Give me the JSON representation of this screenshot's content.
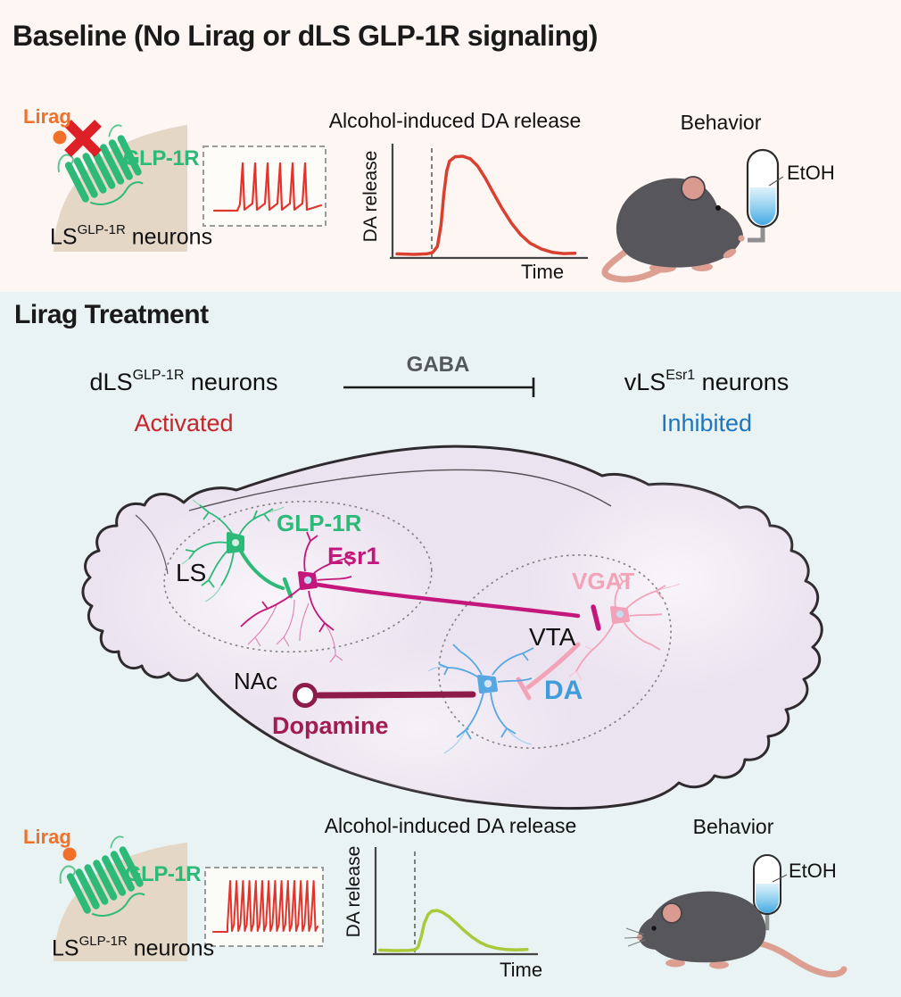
{
  "colors": {
    "baseline_bg": "#fdf6f3",
    "treatment_bg": "#e9f3f3",
    "glp1r_green": "#2db977",
    "lirag_orange": "#f1702a",
    "block_x_red": "#dc2026",
    "spike_red": "#e0342c",
    "baseline_curve_red": "#d9402f",
    "treatment_curve_green": "#a9c93b",
    "activated_red": "#c5252b",
    "inhibited_blue": "#2076bc",
    "esr1_magenta": "#c4177c",
    "vgat_pink": "#f2a3b8",
    "da_blue": "#57a8e2",
    "dopamine_maroon": "#8e1c4a",
    "brain_fill": "#ece3f0",
    "membrane_beige": "#e4d7c6",
    "mouse_gray": "#57565a",
    "mouse_pink": "#dc9f92",
    "etoh_blue": "#45a8e2"
  },
  "baseline": {
    "title": "Baseline (No Lirag or dLS GLP-1R signaling)",
    "receptor": {
      "ligand": "Lirag",
      "receptor_label": "GLP-1R",
      "ligand_blocked": true,
      "neuron": {
        "base": "LS",
        "sup": "GLP-1R",
        "rest": " neurons"
      }
    },
    "plot": {
      "title": "Alcohol-induced DA release",
      "ylabel": "DA release",
      "xlabel": "Time"
    },
    "behavior": {
      "title": "Behavior",
      "bottle_label": "EtOH",
      "state": "mouse drinking EtOH"
    }
  },
  "treatment": {
    "title": "Lirag Treatment",
    "pathway": {
      "left": {
        "base": "dLS",
        "sup": "GLP-1R",
        "rest": " neurons",
        "state": "Activated"
      },
      "mediator": "GABA",
      "right": {
        "base": "vLS",
        "sup": "Esr1",
        "rest": " neurons",
        "state": "Inhibited"
      }
    },
    "brain": {
      "region_ls": "LS",
      "region_vta": "VTA",
      "region_nac": "NAc",
      "neuron_glp1r": "GLP-1R",
      "neuron_esr1": "Esr1",
      "neuron_vgat": "VGAT",
      "neuron_da": "DA",
      "projection": "Dopamine"
    },
    "receptor": {
      "ligand": "Lirag",
      "receptor_label": "GLP-1R",
      "ligand_blocked": false,
      "neuron": {
        "base": "LS",
        "sup": "GLP-1R",
        "rest": " neurons"
      }
    },
    "plot": {
      "title": "Alcohol-induced DA release",
      "ylabel": "DA release",
      "xlabel": "Time"
    },
    "behavior": {
      "title": "Behavior",
      "bottle_label": "EtOH",
      "state": "mouse ignoring EtOH"
    }
  },
  "chart_data": [
    {
      "id": "curve-baseline",
      "type": "line",
      "title": "Alcohol-induced DA release",
      "xlabel": "Time",
      "ylabel": "DA release",
      "condition": "baseline (no Lirag)",
      "color": "#d9402f",
      "schematic": true,
      "alcohol_onset_x_fraction": 0.195,
      "peak_relative_amplitude": 1.0,
      "points": [
        [
          0.01,
          0.005
        ],
        [
          0.1,
          0.0
        ],
        [
          0.17,
          0.005
        ],
        [
          0.2,
          0.02
        ],
        [
          0.225,
          0.08
        ],
        [
          0.245,
          0.3
        ],
        [
          0.26,
          0.62
        ],
        [
          0.275,
          0.85
        ],
        [
          0.29,
          0.95
        ],
        [
          0.32,
          0.995
        ],
        [
          0.36,
          1.0
        ],
        [
          0.4,
          0.975
        ],
        [
          0.44,
          0.9
        ],
        [
          0.48,
          0.78
        ],
        [
          0.52,
          0.64
        ],
        [
          0.57,
          0.47
        ],
        [
          0.62,
          0.32
        ],
        [
          0.67,
          0.2
        ],
        [
          0.72,
          0.115
        ],
        [
          0.78,
          0.055
        ],
        [
          0.84,
          0.02
        ],
        [
          0.9,
          0.008
        ],
        [
          0.96,
          0.012
        ]
      ]
    },
    {
      "id": "curve-treatment",
      "type": "line",
      "title": "Alcohol-induced DA release",
      "xlabel": "Time",
      "ylabel": "DA release",
      "condition": "Lirag treatment",
      "color": "#a9c93b",
      "schematic": true,
      "alcohol_onset_x_fraction": 0.238,
      "peak_relative_amplitude": 0.41,
      "points": [
        [
          0.01,
          0.01
        ],
        [
          0.12,
          0.0
        ],
        [
          0.2,
          0.005
        ],
        [
          0.24,
          0.02
        ],
        [
          0.26,
          0.09
        ],
        [
          0.28,
          0.35
        ],
        [
          0.3,
          0.68
        ],
        [
          0.325,
          0.9
        ],
        [
          0.35,
          0.985
        ],
        [
          0.385,
          1.0
        ],
        [
          0.42,
          0.95
        ],
        [
          0.46,
          0.85
        ],
        [
          0.51,
          0.68
        ],
        [
          0.56,
          0.5
        ],
        [
          0.61,
          0.34
        ],
        [
          0.66,
          0.21
        ],
        [
          0.71,
          0.12
        ],
        [
          0.77,
          0.06
        ],
        [
          0.83,
          0.03
        ],
        [
          0.9,
          0.015
        ],
        [
          0.97,
          0.03
        ]
      ]
    },
    {
      "id": "spikes-baseline",
      "type": "spike-train",
      "condition": "baseline firing of LS GLP-1R neurons",
      "spike_count": 6,
      "color": "#e0342c"
    },
    {
      "id": "spikes-treatment",
      "type": "spike-train",
      "condition": "Lirag-activated firing of LS GLP-1R neurons",
      "spike_count": 14,
      "color": "#e0342c"
    }
  ]
}
